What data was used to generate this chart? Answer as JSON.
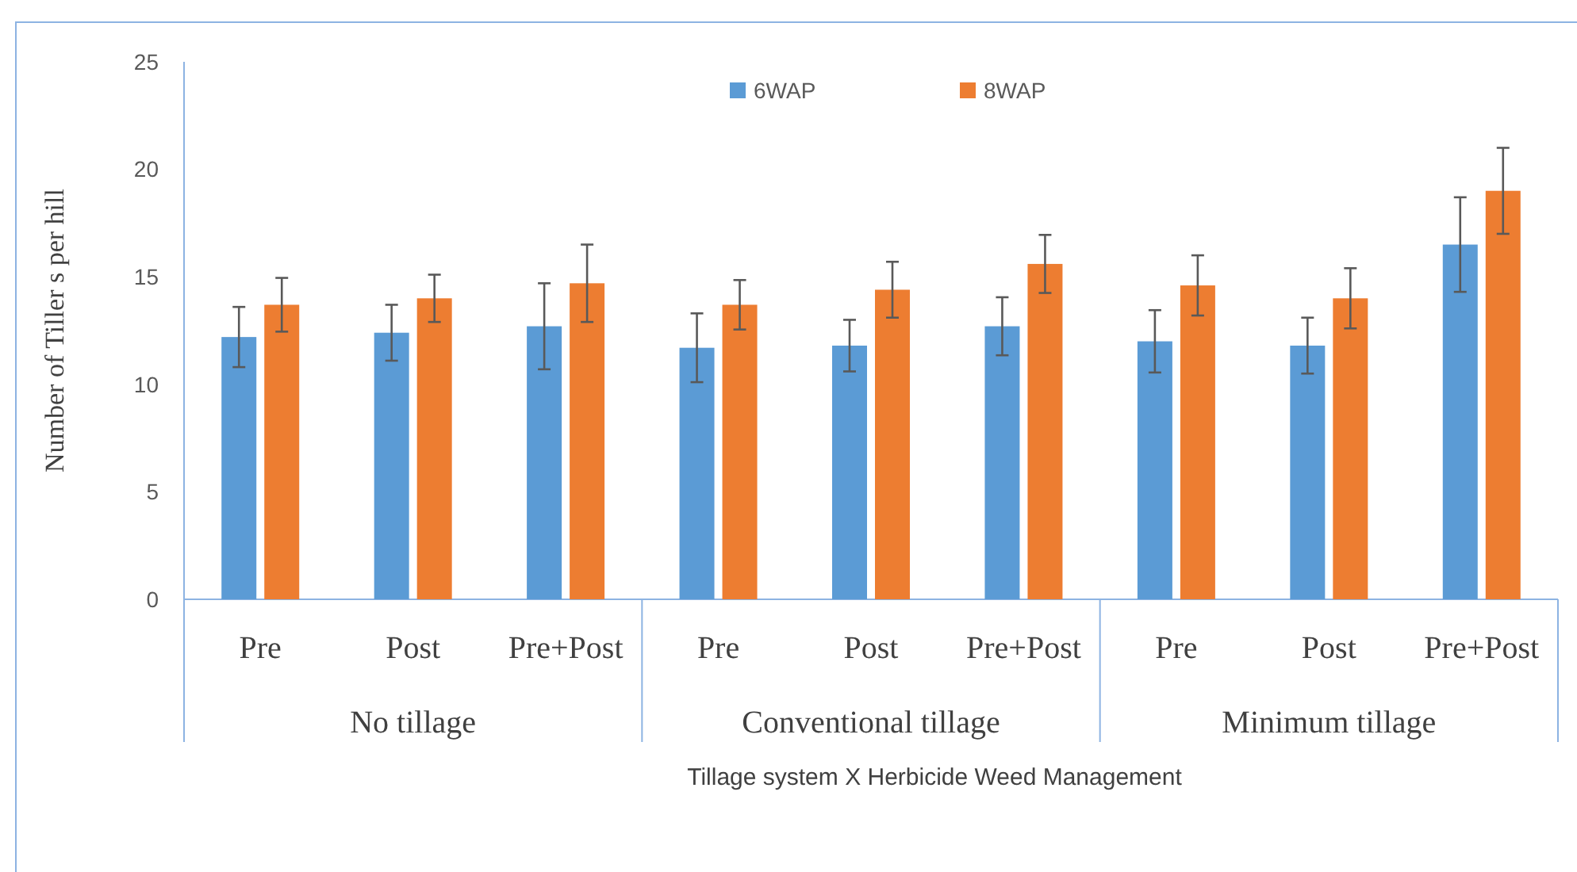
{
  "chart_data": {
    "type": "bar",
    "xlabel": "Tillage system X Herbicide Weed Management",
    "ylabel": "Number of Tiller s per hill",
    "categories": [
      "Pre",
      "Post",
      "Pre+Post",
      "Pre",
      "Post",
      "Pre+Post",
      "Pre",
      "Post",
      "Pre+Post"
    ],
    "series": [
      {
        "name": "6WAP",
        "color": "#5b9bd5",
        "values": [
          12.2,
          12.4,
          12.7,
          11.7,
          11.8,
          12.7,
          12.0,
          11.8,
          16.5
        ],
        "errors": [
          1.4,
          1.3,
          2.0,
          1.6,
          1.2,
          1.35,
          1.45,
          1.3,
          2.2
        ]
      },
      {
        "name": "8WAP",
        "color": "#ed7d31",
        "values": [
          13.7,
          14.0,
          14.7,
          13.7,
          14.4,
          15.6,
          14.6,
          14.0,
          19.0
        ],
        "errors": [
          1.25,
          1.1,
          1.8,
          1.15,
          1.3,
          1.35,
          1.4,
          1.4,
          2.0
        ]
      }
    ],
    "annotations": [
      "No tillage",
      "Conventional tillage",
      "Minimum tillage"
    ],
    "ylim": [
      0,
      25
    ],
    "yticks": [
      0,
      5,
      10,
      15,
      20,
      25
    ],
    "grid": false,
    "legend": "top"
  }
}
